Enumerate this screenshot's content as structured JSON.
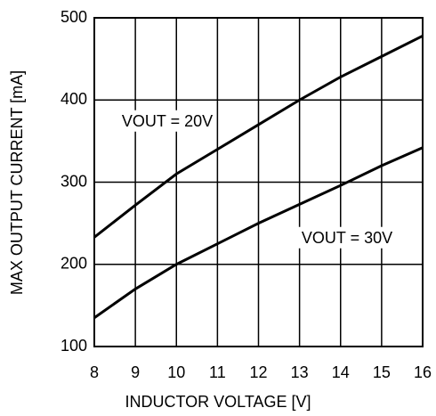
{
  "chart_data": {
    "type": "line",
    "xlabel": "INDUCTOR VOLTAGE [V]",
    "ylabel": "MAX OUTPUT CURRENT [mA]",
    "x": [
      8,
      9,
      10,
      11,
      12,
      13,
      14,
      15,
      16
    ],
    "series": [
      {
        "name": "VOUT = 20V",
        "color": "#000000",
        "values": [
          233,
          272,
          310,
          340,
          370,
          400,
          428,
          453,
          478
        ]
      },
      {
        "name": "VOUT = 30V",
        "color": "#000000",
        "values": [
          135,
          170,
          200,
          225,
          250,
          273,
          296,
          320,
          342
        ]
      }
    ],
    "xlim": [
      8,
      16
    ],
    "xticks": [
      8,
      9,
      10,
      11,
      12,
      13,
      14,
      15,
      16
    ],
    "ylim": [
      100,
      500
    ],
    "yticks": [
      100,
      200,
      300,
      400,
      500
    ],
    "grid": true
  }
}
